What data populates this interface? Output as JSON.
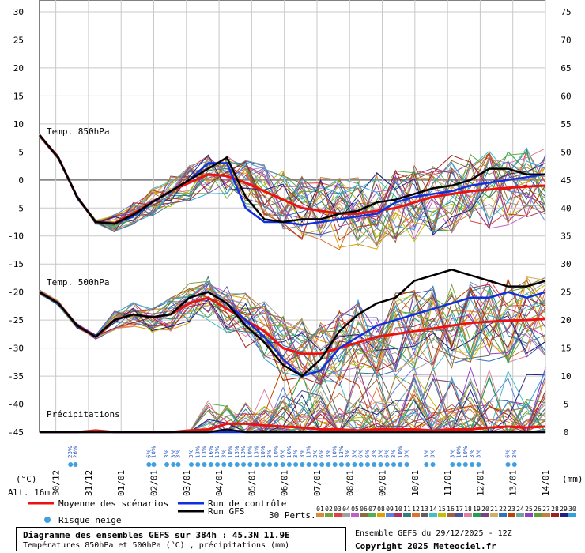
{
  "chart_data": {
    "type": "line",
    "title": "Diagramme des ensembles GEFS sur 384h : 45.3N 11.9E",
    "subtitle": "Températures 850hPa et 500hPa (°C) , précipitations (mm)",
    "ensemble_info": "Ensemble GEFS du 29/12/2025 - 12Z",
    "copyright": "Copyright 2025 Meteociel.fr",
    "altitude": "Alt. 16m",
    "left_unit": "(°C)",
    "right_unit": "(mm)",
    "left_axis": {
      "ticks": [
        30,
        25,
        20,
        15,
        10,
        5,
        0,
        -5,
        -10,
        -15,
        -20,
        -25,
        -30,
        -35,
        -40,
        -45
      ],
      "ylim": [
        -45,
        30
      ]
    },
    "right_axis": {
      "ticks": [
        75,
        70,
        65,
        60,
        55,
        50,
        45,
        40,
        35,
        30,
        25,
        20,
        15,
        10,
        5,
        0
      ],
      "ylim": [
        0,
        75
      ]
    },
    "x_ticks": [
      "30/12",
      "31/12",
      "01/01",
      "02/01",
      "03/01",
      "04/01",
      "05/01",
      "06/01",
      "07/01",
      "08/01",
      "09/01",
      "10/01",
      "11/01",
      "12/01",
      "13/01",
      "14/01"
    ],
    "panel_labels": {
      "t850": "Temp. 850hPa",
      "t500": "Temp. 500hPa",
      "precip": "Précipitations"
    },
    "legend": {
      "mean": "Moyenne des scénarios",
      "control": "Run de contrôle",
      "gfs": "Run GFS",
      "snow": "Risque neige",
      "perts": "30 Perts."
    },
    "member_labels": [
      "01",
      "02",
      "03",
      "04",
      "05",
      "06",
      "07",
      "08",
      "09",
      "10",
      "11",
      "12",
      "13",
      "14",
      "15",
      "16",
      "17",
      "18",
      "19",
      "20",
      "21",
      "22",
      "23",
      "24",
      "25",
      "26",
      "27",
      "28",
      "29",
      "30"
    ],
    "member_colors": [
      "#d98b3a",
      "#7aa23c",
      "#e04040",
      "#a0a0a0",
      "#c060c0",
      "#8a6d3b",
      "#50b050",
      "#e0a000",
      "#6080e0",
      "#b03060",
      "#308080",
      "#e07030",
      "#606060",
      "#40c0c0",
      "#c0c000",
      "#a06040",
      "#5050a0",
      "#e080a0",
      "#20a050",
      "#804080",
      "#d0b060",
      "#3070c0",
      "#c04000",
      "#70a0a0",
      "#9040c0",
      "#60a030",
      "#c08040",
      "#a02020",
      "#202080",
      "#30a0e0"
    ],
    "series": [
      {
        "name": "Moyenne des scénarios",
        "panel": "t850",
        "color": "#ee1111",
        "values": [
          8,
          4,
          -3,
          -7.5,
          -7.7,
          -6,
          -4,
          -2,
          -0.5,
          1,
          0.7,
          -0.5,
          -2,
          -3.5,
          -5,
          -5.5,
          -6,
          -6,
          -5.5,
          -5,
          -4,
          -3,
          -2.5,
          -2,
          -1.7,
          -1.4,
          -1.2,
          -1
        ]
      },
      {
        "name": "Run de contrôle",
        "panel": "t850",
        "color": "#1030e0",
        "values": [
          8,
          4,
          -3,
          -7.5,
          -7.8,
          -6.5,
          -4,
          -2,
          0,
          3,
          3,
          -5,
          -7.5,
          -7.5,
          -8,
          -7.5,
          -7,
          -6.5,
          -6,
          -4,
          -3,
          -2.5,
          -2,
          -1,
          -0.5,
          0,
          0.5,
          1
        ]
      },
      {
        "name": "Run GFS",
        "panel": "t850",
        "color": "#000000",
        "values": [
          8,
          4,
          -3,
          -7.5,
          -7.8,
          -6.2,
          -4,
          -2,
          0,
          2,
          4,
          -3,
          -7,
          -7.5,
          -7,
          -7,
          -6,
          -5.5,
          -4,
          -3.5,
          -2.5,
          -1.5,
          -1,
          0,
          2,
          2,
          1,
          1
        ]
      },
      {
        "name": "Moyenne des scénarios",
        "panel": "t500",
        "color": "#ee1111",
        "values": [
          -20,
          -22,
          -26,
          -28,
          -25,
          -24,
          -24.5,
          -24,
          -22,
          -21,
          -23,
          -25,
          -27,
          -30,
          -31,
          -31,
          -30,
          -29,
          -28,
          -27.5,
          -27,
          -26.5,
          -26,
          -25.5,
          -25.3,
          -25.1,
          -25,
          -24.8
        ]
      },
      {
        "name": "Run de contrôle",
        "panel": "t500",
        "color": "#1030e0",
        "values": [
          -20,
          -22,
          -26,
          -28,
          -25,
          -24,
          -24.5,
          -24,
          -21,
          -20,
          -22,
          -25,
          -28,
          -32,
          -35,
          -34,
          -30,
          -28,
          -26,
          -25,
          -24,
          -23,
          -22,
          -21,
          -21,
          -20,
          -21,
          -20
        ]
      },
      {
        "name": "Run GFS",
        "panel": "t500",
        "color": "#000000",
        "values": [
          -20,
          -22,
          -26,
          -28,
          -25,
          -24,
          -24.5,
          -24,
          -21,
          -20,
          -22,
          -26,
          -29,
          -33,
          -35,
          -32,
          -27,
          -24,
          -22,
          -21,
          -18,
          -17,
          -16,
          -17,
          -18,
          -19,
          -19,
          -18
        ]
      },
      {
        "name": "Moyenne des scénarios",
        "panel": "precip",
        "color": "#ee1111",
        "values": [
          0,
          0,
          0,
          0.3,
          0,
          0,
          0,
          0,
          0.3,
          0.5,
          1.5,
          1.5,
          1.2,
          1,
          0.8,
          0.5,
          0.5,
          0.3,
          0.5,
          0.5,
          0.5,
          0.3,
          0.5,
          0.5,
          0.8,
          1,
          0.8,
          1
        ]
      },
      {
        "name": "Run de contrôle",
        "panel": "precip",
        "color": "#1030e0",
        "values": [
          0,
          0,
          0,
          0,
          0,
          0,
          0,
          0,
          0,
          0,
          0,
          0,
          0,
          0,
          0,
          0,
          0,
          0,
          0,
          0,
          0,
          0,
          0,
          0,
          0,
          0,
          0,
          0
        ]
      },
      {
        "name": "Run GFS",
        "panel": "precip",
        "color": "#000000",
        "values": [
          0,
          0,
          0,
          0,
          0,
          0,
          0,
          0,
          0,
          0,
          0.5,
          0,
          0,
          0,
          0,
          0,
          0,
          0,
          0,
          0,
          0,
          0,
          0,
          0,
          0,
          0,
          0,
          0
        ]
      }
    ],
    "snow_risk_pct": [
      {
        "x": 0.95,
        "label": "23%"
      },
      {
        "x": 1.1,
        "label": "26%"
      },
      {
        "x": 3.35,
        "label": "6%"
      },
      {
        "x": 3.5,
        "label": "10%"
      },
      {
        "x": 3.9,
        "label": "3%"
      },
      {
        "x": 4.1,
        "label": "3%"
      },
      {
        "x": 4.25,
        "label": "3%"
      },
      {
        "x": 4.65,
        "label": "3%"
      },
      {
        "x": 4.85,
        "label": "13%"
      },
      {
        "x": 5.05,
        "label": "13%"
      },
      {
        "x": 5.25,
        "label": "16%"
      },
      {
        "x": 5.45,
        "label": "13%"
      },
      {
        "x": 5.65,
        "label": "3%"
      },
      {
        "x": 5.85,
        "label": "10%"
      },
      {
        "x": 6.05,
        "label": "13%"
      },
      {
        "x": 6.25,
        "label": "13%"
      },
      {
        "x": 6.45,
        "label": "10%"
      },
      {
        "x": 6.65,
        "label": "13%"
      },
      {
        "x": 6.85,
        "label": "10%"
      },
      {
        "x": 7.05,
        "label": "3%"
      },
      {
        "x": 7.25,
        "label": "10%"
      },
      {
        "x": 7.45,
        "label": "6%"
      },
      {
        "x": 7.65,
        "label": "16%"
      },
      {
        "x": 7.85,
        "label": "3%"
      },
      {
        "x": 8.05,
        "label": "3%"
      },
      {
        "x": 8.25,
        "label": "13%"
      },
      {
        "x": 8.45,
        "label": "3%"
      },
      {
        "x": 8.65,
        "label": "6%"
      },
      {
        "x": 8.85,
        "label": "3%"
      },
      {
        "x": 9.05,
        "label": "10%"
      },
      {
        "x": 9.25,
        "label": "13%"
      },
      {
        "x": 9.45,
        "label": "3%"
      },
      {
        "x": 9.65,
        "label": "3%"
      },
      {
        "x": 9.85,
        "label": "6%"
      },
      {
        "x": 10.05,
        "label": "6%"
      },
      {
        "x": 10.25,
        "label": "3%"
      },
      {
        "x": 10.45,
        "label": "3%"
      },
      {
        "x": 10.65,
        "label": "6%"
      },
      {
        "x": 10.85,
        "label": "3%"
      },
      {
        "x": 11.05,
        "label": "10%"
      },
      {
        "x": 11.25,
        "label": "3%"
      },
      {
        "x": 11.85,
        "label": "3%"
      },
      {
        "x": 12.05,
        "label": "3%"
      },
      {
        "x": 12.65,
        "label": "3%"
      },
      {
        "x": 12.85,
        "label": "10%"
      },
      {
        "x": 13.05,
        "label": "10%"
      },
      {
        "x": 13.25,
        "label": "3%"
      },
      {
        "x": 13.45,
        "label": "3%"
      },
      {
        "x": 14.35,
        "label": "6%"
      },
      {
        "x": 14.55,
        "label": "3%"
      }
    ]
  }
}
